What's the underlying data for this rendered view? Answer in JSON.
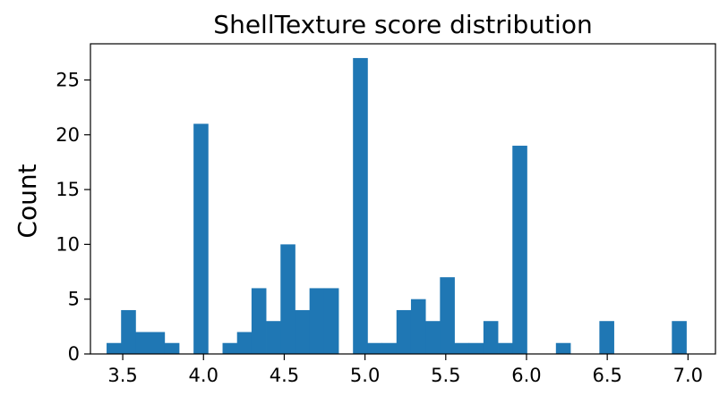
{
  "chart_data": {
    "type": "bar",
    "title": "ShellTexture score distribution",
    "xlabel": "",
    "ylabel": "Count",
    "xlim": [
      3.3,
      7.17
    ],
    "ylim": [
      0,
      28.3
    ],
    "xticks": [
      3.5,
      4.0,
      4.5,
      5.0,
      5.5,
      6.0,
      6.5,
      7.0
    ],
    "xtick_labels": [
      "3.5",
      "4.0",
      "4.5",
      "5.0",
      "5.5",
      "6.0",
      "6.5",
      "7.0"
    ],
    "yticks": [
      0,
      5,
      10,
      15,
      20,
      25
    ],
    "ytick_labels": [
      "0",
      "5",
      "10",
      "15",
      "20",
      "25"
    ],
    "bar_width": 0.0897,
    "bin_starts": [
      3.4,
      3.4897,
      3.5795,
      3.6692,
      3.759,
      3.8487,
      3.9385,
      4.0282,
      4.118,
      4.2077,
      4.2974,
      4.3872,
      4.4769,
      4.5667,
      4.6564,
      4.7462,
      4.8359,
      4.9256,
      5.0154,
      5.1051,
      5.1949,
      5.2846,
      5.3744,
      5.4641,
      5.5538,
      5.6436,
      5.7333,
      5.8231,
      5.9128,
      6.0026,
      6.0923,
      6.1821,
      6.2718,
      6.3615,
      6.4513,
      6.541,
      6.6308,
      6.7205,
      6.8103,
      6.9
    ],
    "values": [
      1,
      4,
      2,
      2,
      1,
      0,
      21,
      0,
      1,
      2,
      6,
      3,
      10,
      4,
      6,
      6,
      0,
      27,
      1,
      1,
      4,
      5,
      3,
      7,
      1,
      1,
      3,
      1,
      19,
      0,
      0,
      1,
      0,
      0,
      3,
      0,
      0,
      0,
      0,
      3
    ],
    "bar_color": "#1f77b4",
    "grid": false,
    "legend": "none"
  }
}
